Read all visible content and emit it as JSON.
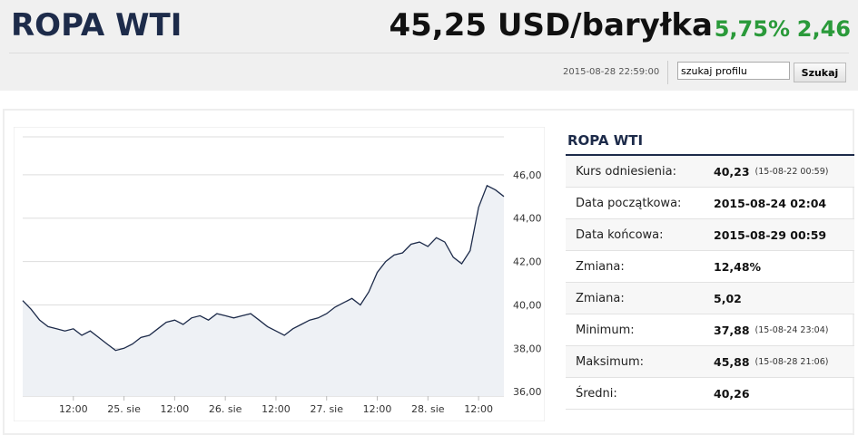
{
  "header": {
    "title": "ROPA WTI",
    "price": "45,25 USD/baryłka",
    "change_pct": "5,75%",
    "change": "2,46",
    "timestamp": "2015-08-28 22:59:00",
    "search_placeholder": "szukaj profilu",
    "search_button": "Szukaj"
  },
  "panel": {
    "title": "ROPA WTI",
    "rows": [
      {
        "label": "Kurs odniesienia:",
        "value": "40,23",
        "note": "(15-08-22 00:59)"
      },
      {
        "label": "Data początkowa:",
        "value": "2015-08-24 02:04"
      },
      {
        "label": "Data końcowa:",
        "value": "2015-08-29 00:59"
      },
      {
        "label": "Zmiana:",
        "value": "12,48%"
      },
      {
        "label": "Zmiana:",
        "value": "5,02"
      },
      {
        "label": "Minimum:",
        "value": "37,88",
        "note": "(15-08-24 23:04)"
      },
      {
        "label": "Maksimum:",
        "value": "45,88",
        "note": "(15-08-28 21:06)"
      },
      {
        "label": "Średni:",
        "value": "40,26"
      }
    ]
  },
  "chart_data": {
    "type": "line",
    "color": "#1d2b4a",
    "x": [
      0,
      2,
      4,
      6,
      8,
      10,
      12,
      14,
      16,
      18,
      20,
      22,
      24,
      26,
      28,
      30,
      32,
      34,
      36,
      38,
      40,
      42,
      44,
      46,
      48,
      50,
      52,
      54,
      56,
      58,
      60,
      62,
      64,
      66,
      68,
      70,
      72,
      74,
      76,
      78,
      80,
      82,
      84,
      86,
      88,
      90,
      92,
      94,
      96,
      98,
      100,
      102,
      104,
      106,
      108,
      110,
      112,
      114
    ],
    "values": [
      40.2,
      39.8,
      39.3,
      39.0,
      38.9,
      38.8,
      38.9,
      38.6,
      38.8,
      38.5,
      38.2,
      37.9,
      38.0,
      38.2,
      38.5,
      38.6,
      38.9,
      39.2,
      39.3,
      39.1,
      39.4,
      39.5,
      39.3,
      39.6,
      39.5,
      39.4,
      39.5,
      39.6,
      39.3,
      39.0,
      38.8,
      38.6,
      38.9,
      39.1,
      39.3,
      39.4,
      39.6,
      39.9,
      40.1,
      40.3,
      40.0,
      40.6,
      41.5,
      42.0,
      42.3,
      42.4,
      42.8,
      42.9,
      42.7,
      43.1,
      42.9,
      42.2,
      41.9,
      42.5,
      44.5,
      45.5,
      45.3,
      45.0
    ],
    "xlim": [
      0,
      114
    ],
    "xticks": [
      {
        "value": 12,
        "label": "12:00"
      },
      {
        "value": 24,
        "label": "25. sie"
      },
      {
        "value": 36,
        "label": "12:00"
      },
      {
        "value": 48,
        "label": "26. sie"
      },
      {
        "value": 60,
        "label": "12:00"
      },
      {
        "value": 72,
        "label": "27. sie"
      },
      {
        "value": 84,
        "label": "12:00"
      },
      {
        "value": 96,
        "label": "28. sie"
      },
      {
        "value": 108,
        "label": "12:00"
      }
    ],
    "ylim": [
      35.8,
      47.75
    ],
    "yticks": [
      {
        "value": 36,
        "label": "36,00"
      },
      {
        "value": 38,
        "label": "38,00"
      },
      {
        "value": 40,
        "label": "40,00"
      },
      {
        "value": 42,
        "label": "42,00"
      },
      {
        "value": 44,
        "label": "44,00"
      },
      {
        "value": 46,
        "label": "46,00"
      }
    ],
    "grid": true
  }
}
